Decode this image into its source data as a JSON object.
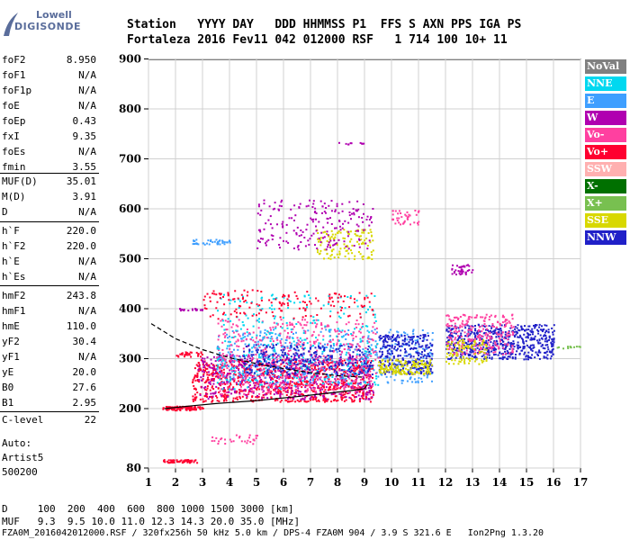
{
  "logo": {
    "line1": "Lowell",
    "line2": "DIGISONDE"
  },
  "header": {
    "line1": "Station   YYYY DAY   DDD HHMMSS P1  FFS S AXN PPS IGA PS",
    "line2": "Fortaleza 2016 Fev11 042 012000 RSF   1 714 100 10+ 11"
  },
  "params_group1": [
    {
      "name": "foF2",
      "value": "8.950"
    },
    {
      "name": "foF1",
      "value": "N/A"
    },
    {
      "name": "foF1p",
      "value": "N/A"
    },
    {
      "name": "foE",
      "value": "N/A"
    },
    {
      "name": "foEp",
      "value": "0.43"
    },
    {
      "name": "fxI",
      "value": "9.35"
    },
    {
      "name": "foEs",
      "value": "N/A"
    },
    {
      "name": "fmin",
      "value": "3.55"
    }
  ],
  "params_group2": [
    {
      "name": "MUF(D)",
      "value": "35.01"
    },
    {
      "name": "M(D)",
      "value": "3.91"
    },
    {
      "name": "D",
      "value": "N/A"
    }
  ],
  "params_group3": [
    {
      "name": "h`F",
      "value": "220.0"
    },
    {
      "name": "h`F2",
      "value": "220.0"
    },
    {
      "name": "h`E",
      "value": "N/A"
    },
    {
      "name": "h`Es",
      "value": "N/A"
    }
  ],
  "params_group4": [
    {
      "name": "hmF2",
      "value": "243.8"
    },
    {
      "name": "hmF1",
      "value": "N/A"
    },
    {
      "name": "hmE",
      "value": "110.0"
    },
    {
      "name": "yF2",
      "value": "30.4"
    },
    {
      "name": "yF1",
      "value": "N/A"
    },
    {
      "name": "yE",
      "value": "20.0"
    },
    {
      "name": "B0",
      "value": "27.6"
    },
    {
      "name": "B1",
      "value": "2.95"
    }
  ],
  "clevel": {
    "name": "C-level",
    "value": "22"
  },
  "auto": {
    "line1": "Auto:",
    "line2": "Artist5",
    "line3": "500200"
  },
  "footer": {
    "line1": "D     100  200  400  600  800 1000 1500 3000 [km]",
    "line2": "MUF   9.3  9.5 10.0 11.0 12.3 14.3 20.0 35.0 [MHz]",
    "line3": "FZA0M_2016042012000.RSF / 320fx256h 50 kHz 5.0 km / DPS-4 FZA0M 904 / 3.9 S 321.6 E   Ion2Png 1.3.20"
  },
  "legend": [
    {
      "label": "NoVal",
      "color": "#808080"
    },
    {
      "label": "NNE",
      "color": "#00d8f0"
    },
    {
      "label": "E",
      "color": "#3f9fff"
    },
    {
      "label": "W",
      "color": "#b000b0"
    },
    {
      "label": "Vo-",
      "color": "#ff40a0"
    },
    {
      "label": "Vo+",
      "color": "#ff0030"
    },
    {
      "label": "SSW",
      "color": "#ffb0b0"
    },
    {
      "label": "X-",
      "color": "#007000"
    },
    {
      "label": "X+",
      "color": "#78c050"
    },
    {
      "label": "SSE",
      "color": "#d8d800"
    },
    {
      "label": "NNW",
      "color": "#2020c8"
    }
  ],
  "chart_data": {
    "type": "scatter",
    "x_ticks": [
      1,
      2,
      3,
      4,
      5,
      6,
      7,
      8,
      9,
      10,
      11,
      12,
      13,
      14,
      15,
      16,
      17
    ],
    "y_ticks": [
      80,
      200,
      300,
      400,
      500,
      600,
      700,
      800,
      900
    ],
    "xlim": [
      1,
      17
    ],
    "ylim": [
      80,
      900
    ],
    "grid": true,
    "clusters": [
      {
        "color": "#ff0030",
        "x": [
          1.5,
          3.0
        ],
        "y": [
          198,
          206
        ],
        "n": 90
      },
      {
        "color": "#ff0030",
        "x": [
          1.5,
          2.8
        ],
        "y": [
          92,
          98
        ],
        "n": 60
      },
      {
        "color": "#3f9fff",
        "x": [
          2.6,
          4.0
        ],
        "y": [
          530,
          540
        ],
        "n": 40
      },
      {
        "color": "#ff0030",
        "x": [
          2.0,
          3.0
        ],
        "y": [
          305,
          315
        ],
        "n": 30
      },
      {
        "color": "#b000b0",
        "x": [
          2.0,
          3.0
        ],
        "y": [
          398,
          402
        ],
        "n": 20
      },
      {
        "color": "#ff0030",
        "x": [
          2.6,
          9.3
        ],
        "y": [
          215,
          300
        ],
        "n": 900
      },
      {
        "color": "#b000b0",
        "x": [
          2.8,
          9.3
        ],
        "y": [
          220,
          310
        ],
        "n": 500
      },
      {
        "color": "#3f9fff",
        "x": [
          3.5,
          11.5
        ],
        "y": [
          250,
          360
        ],
        "n": 500
      },
      {
        "color": "#ff40a0",
        "x": [
          3.5,
          9.5
        ],
        "y": [
          230,
          380
        ],
        "n": 500
      },
      {
        "color": "#00d8f0",
        "x": [
          3.5,
          9.5
        ],
        "y": [
          240,
          430
        ],
        "n": 300
      },
      {
        "color": "#2020c8",
        "x": [
          9.5,
          11.5
        ],
        "y": [
          270,
          350
        ],
        "n": 300
      },
      {
        "color": "#d8d800",
        "x": [
          9.5,
          11.5
        ],
        "y": [
          270,
          300
        ],
        "n": 150
      },
      {
        "color": "#2020c8",
        "x": [
          12.0,
          16.0
        ],
        "y": [
          300,
          370
        ],
        "n": 600
      },
      {
        "color": "#ff40a0",
        "x": [
          12.0,
          14.5
        ],
        "y": [
          310,
          390
        ],
        "n": 250
      },
      {
        "color": "#d8d800",
        "x": [
          12.0,
          13.5
        ],
        "y": [
          290,
          340
        ],
        "n": 100
      },
      {
        "color": "#b000b0",
        "x": [
          12.2,
          13.0
        ],
        "y": [
          470,
          490
        ],
        "n": 40
      },
      {
        "color": "#d8d800",
        "x": [
          7.2,
          9.3
        ],
        "y": [
          500,
          560
        ],
        "n": 120
      },
      {
        "color": "#b000b0",
        "x": [
          5.0,
          9.3
        ],
        "y": [
          520,
          620
        ],
        "n": 200
      },
      {
        "color": "#ff40a0",
        "x": [
          10.0,
          11.0
        ],
        "y": [
          570,
          600
        ],
        "n": 40
      },
      {
        "color": "#b000b0",
        "x": [
          8.0,
          9.0
        ],
        "y": [
          730,
          734
        ],
        "n": 10
      },
      {
        "color": "#ff40a0",
        "x": [
          3.0,
          5.0
        ],
        "y": [
          130,
          150
        ],
        "n": 30
      },
      {
        "color": "#ff0030",
        "x": [
          3.0,
          9.3
        ],
        "y": [
          380,
          440
        ],
        "n": 150
      },
      {
        "color": "#2020c8",
        "x": [
          4.5,
          9.3
        ],
        "y": [
          270,
          330
        ],
        "n": 250
      },
      {
        "color": "#78c050",
        "x": [
          16.0,
          17.0
        ],
        "y": [
          322,
          326
        ],
        "n": 12
      }
    ],
    "profile_solid": {
      "x": [
        1.6,
        2.5,
        3.5,
        5.0,
        6.5,
        7.5,
        8.5,
        9.0,
        9.1
      ],
      "y": [
        200,
        205,
        210,
        216,
        224,
        230,
        236,
        240,
        248
      ]
    },
    "profile_dashed": {
      "x": [
        1.1,
        2.0,
        3.0,
        4.0,
        5.0,
        6.0,
        7.0,
        8.0,
        8.9
      ],
      "y": [
        370,
        340,
        318,
        302,
        290,
        280,
        272,
        266,
        263
      ]
    }
  }
}
